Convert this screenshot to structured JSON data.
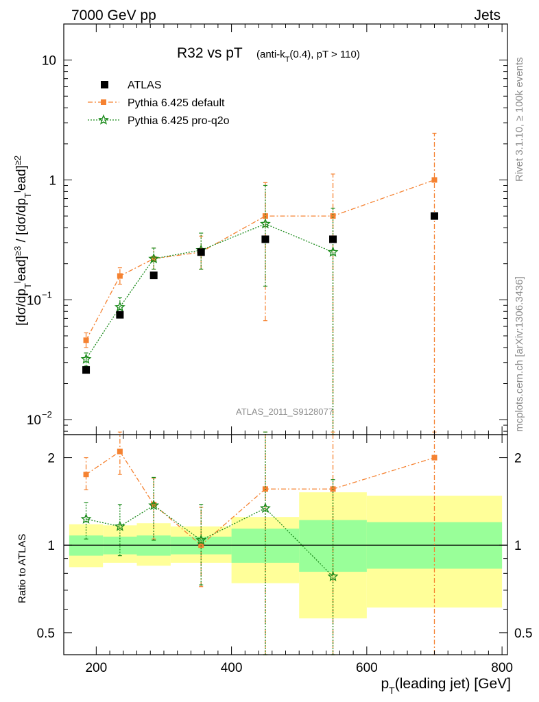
{
  "header": {
    "left": "7000 GeV pp",
    "right": "Jets"
  },
  "side_labels": {
    "rivet": "Rivet 3.1.10, ≥ 100k events",
    "mcplots": "mcplots.cern.ch [arXiv:1306.3436]"
  },
  "chart_data": [
    {
      "type": "scatter",
      "title": "R32 vs pT",
      "subtitle": "(anti-kT(0.4), pT > 110)",
      "watermark": "ATLAS_2011_S9128077",
      "xlabel": "pT(leading jet) [GeV]",
      "ylabel": "[dσ/dpTlead]≥3 / [dσ/dpTlead]≥2",
      "yscale": "log",
      "xlim": [
        152,
        808
      ],
      "ylim": [
        0.0075,
        20
      ],
      "x_ticks": [
        "200",
        "400",
        "600",
        "800"
      ],
      "y_ticks": [
        "10^-2",
        "10^-1",
        "1",
        "10"
      ],
      "legend_position": "top-left",
      "colors": {
        "data": "#000000",
        "default": "#f58231",
        "proq2o": "#1a8a1a"
      },
      "series": [
        {
          "name": "ATLAS",
          "style": "black-square",
          "points": [
            {
              "x": 185,
              "y": 0.026
            },
            {
              "x": 235,
              "y": 0.075
            },
            {
              "x": 285,
              "y": 0.16
            },
            {
              "x": 355,
              "y": 0.25
            },
            {
              "x": 450,
              "y": 0.32
            },
            {
              "x": 550,
              "y": 0.32
            },
            {
              "x": 700,
              "y": 0.5
            }
          ]
        },
        {
          "name": "Pythia 6.425 default",
          "style": "orange-dashdot-square",
          "points": [
            {
              "x": 185,
              "y": 0.046,
              "lo": 0.04,
              "hi": 0.053
            },
            {
              "x": 235,
              "y": 0.158,
              "lo": 0.135,
              "hi": 0.185
            },
            {
              "x": 285,
              "y": 0.22,
              "lo": 0.18,
              "hi": 0.27
            },
            {
              "x": 355,
              "y": 0.25,
              "lo": 0.18,
              "hi": 0.34
            },
            {
              "x": 450,
              "y": 0.5,
              "lo": 0.067,
              "hi": 0.95
            },
            {
              "x": 550,
              "y": 0.5,
              "lo": 0.0075,
              "hi": 1.12
            },
            {
              "x": 700,
              "y": 1.0,
              "lo": 0.0075,
              "hi": 2.45
            }
          ]
        },
        {
          "name": "Pythia 6.425 pro-q2o",
          "style": "green-dotted-star",
          "points": [
            {
              "x": 185,
              "y": 0.032,
              "lo": 0.028,
              "hi": 0.036
            },
            {
              "x": 235,
              "y": 0.087,
              "lo": 0.074,
              "hi": 0.104
            },
            {
              "x": 285,
              "y": 0.22,
              "lo": 0.18,
              "hi": 0.27
            },
            {
              "x": 355,
              "y": 0.26,
              "lo": 0.18,
              "hi": 0.36
            },
            {
              "x": 450,
              "y": 0.43,
              "lo": 0.13,
              "hi": 0.9
            },
            {
              "x": 550,
              "y": 0.25,
              "lo": 0.0075,
              "hi": 0.58
            }
          ]
        }
      ]
    },
    {
      "type": "scatter",
      "ylabel": "Ratio to ATLAS",
      "yscale": "log",
      "ylim": [
        0.42,
        2.4
      ],
      "y_ticks": [
        "0.5",
        "1",
        "2"
      ],
      "reference_line": 1,
      "bands": [
        {
          "x0": 160,
          "x1": 210,
          "inner": [
            0.92,
            1.08
          ],
          "outer": [
            0.84,
            1.18
          ]
        },
        {
          "x0": 210,
          "x1": 260,
          "inner": [
            0.93,
            1.07
          ],
          "outer": [
            0.87,
            1.17
          ]
        },
        {
          "x0": 260,
          "x1": 310,
          "inner": [
            0.92,
            1.08
          ],
          "outer": [
            0.85,
            1.19
          ]
        },
        {
          "x0": 310,
          "x1": 400,
          "inner": [
            0.93,
            1.07
          ],
          "outer": [
            0.87,
            1.16
          ]
        },
        {
          "x0": 400,
          "x1": 500,
          "inner": [
            0.87,
            1.14
          ],
          "outer": [
            0.74,
            1.25
          ]
        },
        {
          "x0": 500,
          "x1": 600,
          "inner": [
            0.81,
            1.22
          ],
          "outer": [
            0.56,
            1.52
          ]
        },
        {
          "x0": 600,
          "x1": 800,
          "inner": [
            0.83,
            1.2
          ],
          "outer": [
            0.61,
            1.48
          ]
        }
      ],
      "series": [
        {
          "name": "Pythia 6.425 default",
          "points": [
            {
              "x": 185,
              "y": 1.75,
              "lo": 1.55,
              "hi": 2.0
            },
            {
              "x": 235,
              "y": 2.1,
              "lo": 1.75,
              "hi": 2.45
            },
            {
              "x": 285,
              "y": 1.38,
              "lo": 1.05,
              "hi": 1.7
            },
            {
              "x": 355,
              "y": 1.0,
              "lo": 0.72,
              "hi": 1.35
            },
            {
              "x": 450,
              "y": 1.56,
              "lo": 0.42,
              "hi": 2.45
            },
            {
              "x": 550,
              "y": 1.56,
              "lo": 0.42,
              "hi": 2.45
            },
            {
              "x": 700,
              "y": 2.0,
              "lo": 0.42,
              "hi": 2.45
            }
          ]
        },
        {
          "name": "Pythia 6.425 pro-q2o",
          "points": [
            {
              "x": 185,
              "y": 1.23,
              "lo": 1.05,
              "hi": 1.4
            },
            {
              "x": 235,
              "y": 1.16,
              "lo": 0.92,
              "hi": 1.38
            },
            {
              "x": 285,
              "y": 1.37,
              "lo": 1.04,
              "hi": 1.71
            },
            {
              "x": 355,
              "y": 1.04,
              "lo": 0.73,
              "hi": 1.38
            },
            {
              "x": 450,
              "y": 1.34,
              "lo": 0.42,
              "hi": 2.45
            },
            {
              "x": 550,
              "y": 0.78,
              "lo": 0.42,
              "hi": 1.68
            }
          ]
        }
      ]
    }
  ]
}
